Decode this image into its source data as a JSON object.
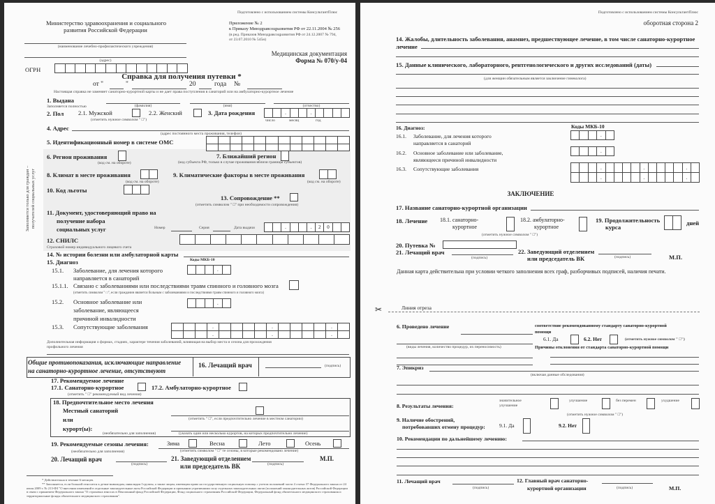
{
  "left": {
    "consultant_note": "Подготовлено с использованием системы КонсультантПлюс",
    "ministry": [
      "Министерство здравоохранения и социального",
      "развития Российской Федерации"
    ],
    "appendix": [
      "Приложение № 2",
      "к Приказу Минздравсоцразвития РФ от 22.11.2004 № 256",
      "(в ред. Приказов Минздравсоцразвития РФ от 24.12.2007 № 794,",
      "от 23.07.2010 № 545н)"
    ],
    "institution_caption": "(наименование лечебно-профилактического учреждения)",
    "address_caption": "(адрес)",
    "med_doc": "Медицинская документация",
    "form_no": "Форма № 070/у-04",
    "ogrn": "ОГРН",
    "title": "Справка для получения путевки *",
    "date_line": {
      "ot": "от \"",
      "q": "\"",
      "year": "20",
      "goda": "года",
      "no": "№"
    },
    "notice": "Настоящая справка не заменяет санаторно-курортной карты и не дает права поступления в санаторий или на амбулаторно-курортное лечение",
    "f1": {
      "label": "1. Выдана",
      "note": "Заполняется полностью",
      "surname": "(фамилия)",
      "name": "(имя)",
      "patronymic": "(отчество)"
    },
    "f2": {
      "label": "2. Пол",
      "male": "2.1. Мужской",
      "female": "2.2. Женский",
      "caption": "(отметить нужное символом \" □\")"
    },
    "f3": {
      "label": "3. Дата рождения",
      "day": "число",
      "month": "месяц",
      "year": "год",
      "marks": [
        "",
        "",
        ".",
        "",
        "",
        ".",
        "",
        "",
        "",
        ""
      ]
    },
    "f4": {
      "label": "4. Адрес",
      "caption": "(адрес постоянного места проживания, телефон)"
    },
    "f5": {
      "label": "5. Идентификационный номер в системе ОМС"
    },
    "side_note": [
      "Заполняется только для граждан –",
      "получателей социальных услуг"
    ],
    "f6": {
      "label": "6. Регион проживания",
      "caption": "(код см. на обороте)"
    },
    "f7": {
      "label": "7. Ближайший регион",
      "caption": "(код субъекта РФ, только в случае проживания вблизи границы субъектов)"
    },
    "f8": {
      "label": "8. Климат в месте проживания",
      "caption": "(код см. на обороте)"
    },
    "f9": {
      "label": "9. Климатические факторы в месте проживания",
      "caption": "(код см. на обороте)"
    },
    "f10": {
      "label": "10. Код льготы"
    },
    "f13": {
      "label": "13. Сопровождение **",
      "caption": "(отметить символом \" □\" при необходимости сопровождения)"
    },
    "f11": {
      "label": [
        "11. Документ, удостоверяющий право на",
        "получение набора",
        "социальных услуг"
      ],
      "number": "Номер",
      "series": "Серия",
      "issue_date": "Дата выдачи",
      "marks": [
        "",
        "",
        ".",
        "",
        "",
        ".",
        "2",
        "0",
        "",
        ""
      ]
    },
    "f12": {
      "label": "12. СНИЛС",
      "caption": "Страховой номер индивидуального лицевого счета"
    },
    "f14": {
      "label": "14. № истории болезни или амбулаторной карты"
    },
    "f15": {
      "label": "15. Диагноз",
      "codes": "Коды МКБ-10",
      "d1": {
        "num": "15.1.",
        "text": [
          "Заболевание, для лечения которого",
          "направляется в санаторий"
        ]
      },
      "d11": {
        "num": "15.1.1.",
        "text": "Связано с заболеваниями или последствиями травм спинного и головного мозга",
        "caption": "(отметить символом \" □\", если гражданин является больным с заболеваниями и последствиями травм спинного и головного мозга)"
      },
      "d2": {
        "num": "15.2.",
        "text": [
          "Основное заболевание или",
          "заболевание, являющееся",
          "причиной инвалидности"
        ]
      },
      "d3": {
        "num": "15.3.",
        "text": "Сопутствующие заболевания"
      },
      "code_marks": [
        "",
        "",
        "",
        ".",
        ""
      ],
      "extra": [
        "Дополнительная информация о формах, стадиях, характере течения заболеваний, влияющая на выбор места и сезона для прохождения",
        "профильного лечения"
      ]
    },
    "contra": [
      "Общие противопоказания, исключающие направление",
      "на санаторно-курортное лечение, отсутствуют"
    ],
    "f16": {
      "label": "16. Лечащий врач",
      "sign": "(подпись)"
    },
    "f17": {
      "label": "17. Рекомендуемое лечение",
      "sanatorium": "17.1. Санаторно-курортное",
      "ambulatory": "17.2. Амбулаторно-курортное",
      "caption": "(отметить \" □\" рекомендуемый вид лечения)"
    },
    "f18": {
      "label": "18. Предпочтительное место лечения",
      "local": "Местный санаторий",
      "or": "или",
      "resorts": "курорт(ы):",
      "optional": "(необязательно для заполнения)",
      "cap1": "(отметить \" □\", если предпочтительно лечение в местном санатории)",
      "cap2": "(указать один или несколько курортов, на которых предпочтительно лечение)"
    },
    "f19": {
      "label": "19. Рекомендуемые сезоны лечения:",
      "seasons": [
        "Зима",
        "Весна",
        "Лето",
        "Осень"
      ],
      "optional": "(необязательно для заполнения)",
      "caption": "(отметить символом \" □\" те сезоны, в которые рекомендовано лечение)"
    },
    "f20": {
      "label": "20. Лечащий врач",
      "sign": "(подпись)"
    },
    "f21": {
      "label": [
        "21. Заведующий отделением",
        "или председатель ВК"
      ],
      "sign": "(подпись)",
      "stamp": "М.П."
    },
    "footnotes": [
      "* Действительна в течение 6 месяцев.",
      "** Заполняется, если больной относится к детям-инвалидам, инвалидам I группы, а также лицам, имеющим право на государственную социальную помощь с учетом положений части 4 статьи 37 Федерального закона от 24 июля 2009 г. № 213-ФЗ \"О внесении изменений в отдельные законодательные акты Российской Федерации и признании утратившими силу отдельных законодательных актов (положений законодательных актов) Российской Федерации в связи с принятием Федерального закона \"О страховых взносах в Пенсионный фонд Российской Федерации, Фонд социального страхования Российской Федерации, Федеральный фонд обязательного медицинского страхования и территориальные фонды обязательного медицинского страхования\"."
    ]
  },
  "right": {
    "consultant_note": "Подготовлено с использованием системы КонсультантПлюс",
    "side": "оборотная сторона 2",
    "f14": [
      "14. Жалобы, длительность заболевания, анамнез, предшествующее лечение, в том числе санаторно-курортное",
      "лечение"
    ],
    "f15": {
      "label": "15. Данные клинического, лабораторного, рентгенологического и других исследований (даты)",
      "caption": "(для женщин обязательным является заключение гинеколога)"
    },
    "f16": {
      "label": "16. Диагноз:",
      "codes": "Коды МКБ-10",
      "d1": {
        "num": "16.1.",
        "text": [
          "Заболевание, для лечения которого",
          "направляется в санаторий"
        ]
      },
      "d2": {
        "num": "16.2.",
        "text": [
          "Основное заболевание или заболевание,",
          "являющееся причиной инвалидности"
        ]
      },
      "d3": {
        "num": "16.3.",
        "text": "Сопутствующие заболевания"
      },
      "code_marks": [
        "",
        "",
        "",
        ".",
        ""
      ]
    },
    "conclusion": "ЗАКЛЮЧЕНИЕ",
    "f17": "17. Название санаторно-курортной организации",
    "f18": {
      "label": "18. Лечение",
      "o1": [
        "18.1. санаторно-",
        "курортное"
      ],
      "o2": [
        "18.2. амбулаторно-",
        "курортное"
      ],
      "caption": "(отметить нужное символом \" □\")"
    },
    "f19": {
      "label": [
        "19. Продолжительность",
        "курса"
      ],
      "days": "дней"
    },
    "f20": "20. Путевка №",
    "f21": {
      "label": "21. Лечащий врач",
      "sign": "(подпись)"
    },
    "f22": {
      "label": [
        "22. Заведующий отделением",
        "или председатель ВК"
      ],
      "sign": "(подпись)",
      "stamp": "М.П."
    },
    "validity": "Данная карта действительна при условии четкого заполнения всех граф, разборчивых подписей, наличия печати.",
    "cut_line": "Линия отреза",
    "scissors_icon": "✂",
    "c6": {
      "label": "6. Проведено лечение",
      "caption": "(виды лечения, количество процедур, их переносимость)",
      "compliance": [
        "соответствие рекомендованному стандарту санаторно-курортной",
        "помощи"
      ],
      "yes": "6.1. Да",
      "no": "6.2. Нет",
      "mark": "(отметить нужное символом \" □\")",
      "reasons": "Причины отклонения от стандарта санаторно-курортной помощи"
    },
    "c7": {
      "label": "7. Эпикриз",
      "caption": "(включая данные обследования)"
    },
    "c8": {
      "label": "8. Результаты лечения:",
      "options": [
        [
          "значительное",
          "улучшение"
        ],
        [
          "улучшение"
        ],
        [
          "без перемен"
        ],
        [
          "ухудшение"
        ]
      ],
      "caption": "(отметить нужное символом \" □\")"
    },
    "c9": {
      "label": [
        "9. Наличие обострений,",
        "потребовавших отмену процедур:"
      ],
      "yes": "9.1. Да",
      "no": "9.2. Нет"
    },
    "c10": "10. Рекомендации по дальнейшему лечению:",
    "c11": {
      "label": "11. Лечащий врач",
      "sign": "(подпись)"
    },
    "c12": {
      "label": [
        "12. Главный врач санаторно-",
        "курортной организации"
      ],
      "sign": "(подпись)",
      "stamp": "М.П."
    }
  }
}
